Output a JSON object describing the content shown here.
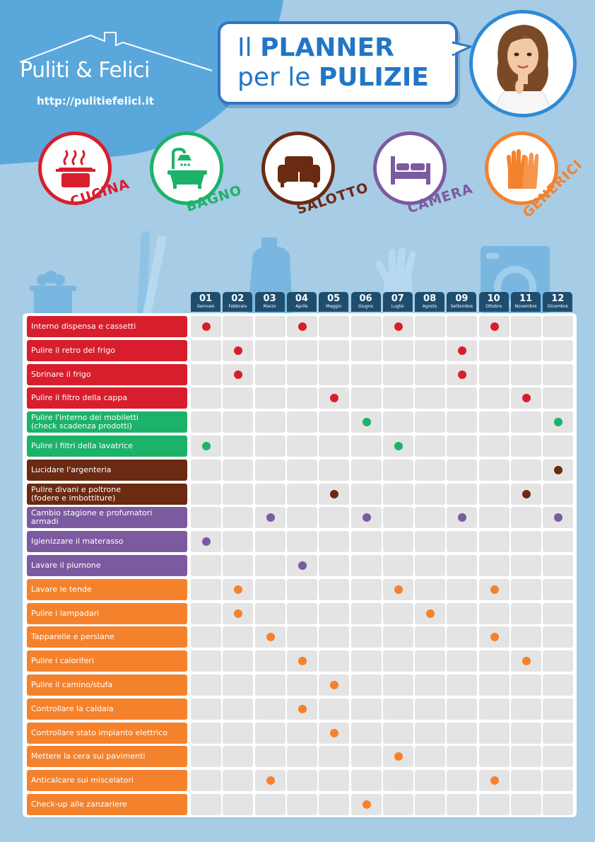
{
  "brand": {
    "name": "Puliti & Felici",
    "url": "http://pulitiefelici.it"
  },
  "title": {
    "line1_pre": "Il ",
    "line1_bold": "PLANNER",
    "line2_pre": "per le ",
    "line2_bold": "PULIZIE"
  },
  "colors": {
    "cucina": "#d81e2c",
    "bagno": "#1db26a",
    "salotto": "#6b2a12",
    "camera": "#7c5aa0",
    "generici": "#f4822d"
  },
  "categories": [
    {
      "key": "cucina",
      "label": "CUCINA",
      "icon": "cooking-pot-icon"
    },
    {
      "key": "bagno",
      "label": "BAGNO",
      "icon": "bathtub-icon"
    },
    {
      "key": "salotto",
      "label": "SALOTTO",
      "icon": "sofa-icon"
    },
    {
      "key": "camera",
      "label": "CAMERA",
      "icon": "bed-icon"
    },
    {
      "key": "generici",
      "label": "GENERICI",
      "icon": "gloves-icon"
    }
  ],
  "months": [
    {
      "num": "01",
      "name": "Gennaio"
    },
    {
      "num": "02",
      "name": "Febbraio"
    },
    {
      "num": "03",
      "name": "Marzo"
    },
    {
      "num": "04",
      "name": "Aprile"
    },
    {
      "num": "05",
      "name": "Maggio"
    },
    {
      "num": "06",
      "name": "Giugno"
    },
    {
      "num": "07",
      "name": "Luglio"
    },
    {
      "num": "08",
      "name": "Agosto"
    },
    {
      "num": "09",
      "name": "Settembre"
    },
    {
      "num": "10",
      "name": "Ottobre"
    },
    {
      "num": "11",
      "name": "Novembre"
    },
    {
      "num": "12",
      "name": "Dicembre"
    }
  ],
  "tasks": [
    {
      "label": "Interno dispensa e cassetti",
      "cat": "cucina",
      "months": [
        1,
        4,
        7,
        10
      ]
    },
    {
      "label": "Pulire il retro del frigo",
      "cat": "cucina",
      "months": [
        2,
        9
      ]
    },
    {
      "label": "Sbrinare il frigo",
      "cat": "cucina",
      "months": [
        2,
        9
      ]
    },
    {
      "label": "Pulire il filtro della cappa",
      "cat": "cucina",
      "months": [
        5,
        11
      ]
    },
    {
      "label": "Pulire l'interno dei mobiletti\n(check scadenza prodotti)",
      "cat": "bagno",
      "months": [
        6,
        12
      ]
    },
    {
      "label": "Pulire i filtri della lavatrice",
      "cat": "bagno",
      "months": [
        1,
        7
      ]
    },
    {
      "label": "Lucidare l'argenteria",
      "cat": "salotto",
      "months": [
        12
      ]
    },
    {
      "label": "Pulire divani e poltrone\n(fodere e imbottiture)",
      "cat": "salotto",
      "months": [
        5,
        11
      ]
    },
    {
      "label": "Cambio stagione e profumatori\narmadi",
      "cat": "camera",
      "months": [
        3,
        6,
        9,
        12
      ]
    },
    {
      "label": "Igienizzare il materasso",
      "cat": "camera",
      "months": [
        1
      ]
    },
    {
      "label": "Lavare il piumone",
      "cat": "camera",
      "months": [
        4
      ]
    },
    {
      "label": "Lavare le tende",
      "cat": "generici",
      "months": [
        2,
        7,
        10
      ]
    },
    {
      "label": "Pulire i lampadari",
      "cat": "generici",
      "months": [
        2,
        8
      ]
    },
    {
      "label": "Tapparelle e persiane",
      "cat": "generici",
      "months": [
        3,
        10
      ]
    },
    {
      "label": "Pulire i caloriferi",
      "cat": "generici",
      "months": [
        4,
        11
      ]
    },
    {
      "label": "Pulire il camino/stufa",
      "cat": "generici",
      "months": [
        5
      ]
    },
    {
      "label": "Controllare la caldaia",
      "cat": "generici",
      "months": [
        4
      ]
    },
    {
      "label": "Controllare stato impianto elettrico",
      "cat": "generici",
      "months": [
        5
      ]
    },
    {
      "label": "Mettere la cera sui pavimenti",
      "cat": "generici",
      "months": [
        7
      ]
    },
    {
      "label": "Anticalcare sui miscelatori",
      "cat": "generici",
      "months": [
        3,
        10
      ]
    },
    {
      "label": "Check-up alle zanzariere",
      "cat": "generici",
      "months": [
        6
      ]
    }
  ]
}
